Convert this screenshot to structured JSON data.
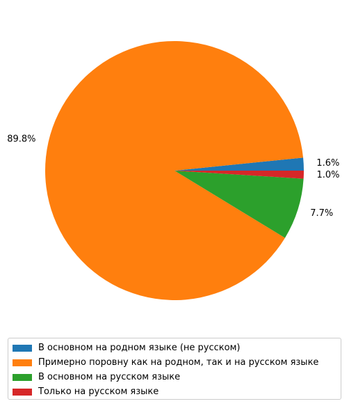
{
  "chart_data": {
    "type": "pie",
    "slices": [
      {
        "label": "В основном на родном языке (не русском)",
        "value": 1.6,
        "pct_label": "1.6%",
        "color": "#1f77b4"
      },
      {
        "label": "Примерно поровну как на родном, так и на русском языке",
        "value": 89.8,
        "pct_label": "89.8%",
        "color": "#ff7f0e"
      },
      {
        "label": "В основном на русском языке",
        "value": 7.7,
        "pct_label": "7.7%",
        "color": "#2ca02c"
      },
      {
        "label": "Только на русском языке",
        "value": 1.0,
        "pct_label": "1.0%",
        "color": "#d62728"
      }
    ],
    "legend_position": "bottom"
  }
}
